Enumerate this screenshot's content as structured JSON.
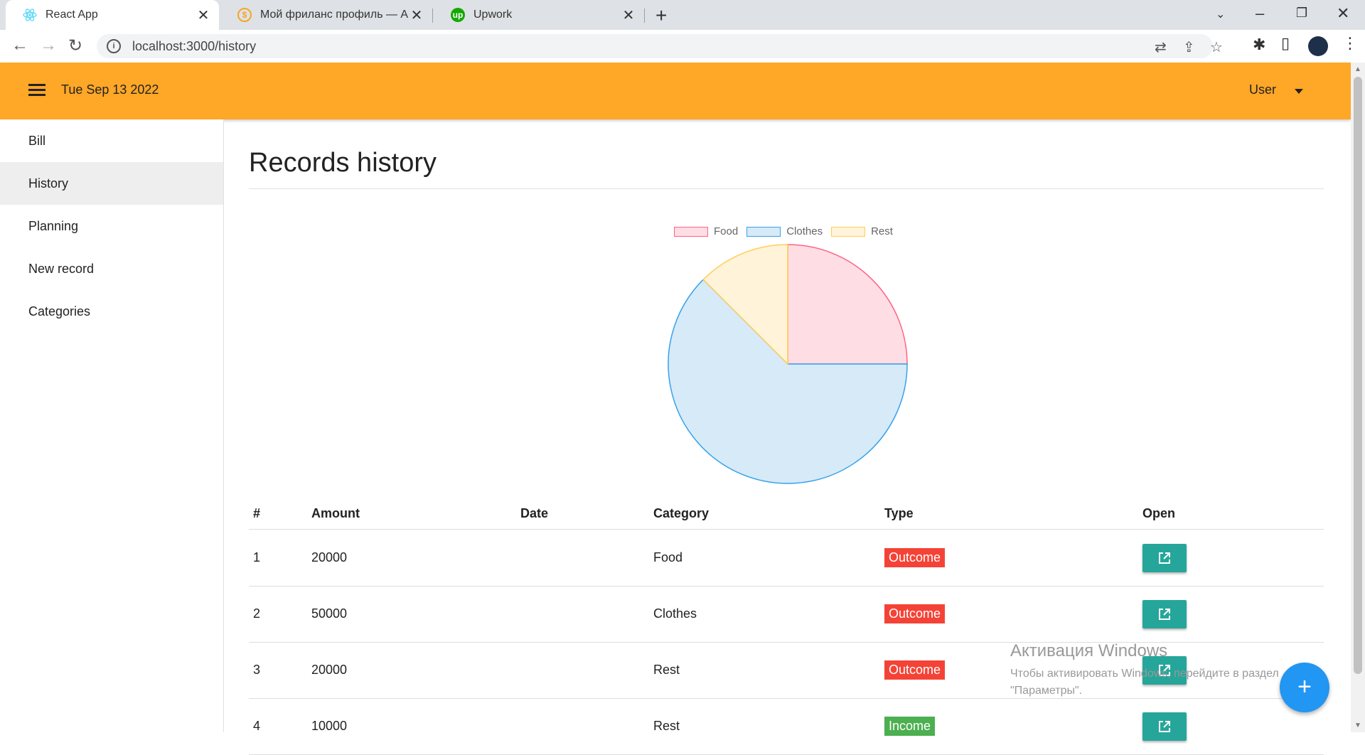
{
  "browser": {
    "tabs": [
      {
        "title": "React App",
        "icon": "react-icon"
      },
      {
        "title": "Мой фриланс профиль — Алди",
        "icon": "freelance-icon"
      },
      {
        "title": "Upwork",
        "icon": "upwork-icon"
      }
    ],
    "url": "localhost:3000/history"
  },
  "header": {
    "date": "Tue Sep 13 2022",
    "user_label": "User",
    "color": "#ffa726"
  },
  "sidebar": {
    "items": [
      {
        "label": "Bill",
        "active": false
      },
      {
        "label": "History",
        "active": true
      },
      {
        "label": "Planning",
        "active": false
      },
      {
        "label": "New record",
        "active": false
      },
      {
        "label": "Categories",
        "active": false
      }
    ]
  },
  "main": {
    "title": "Records history"
  },
  "chart_data": {
    "type": "pie",
    "labels": [
      "Food",
      "Clothes",
      "Rest"
    ],
    "values": [
      20000,
      50000,
      10000
    ],
    "colors": [
      "#ffdde4",
      "#d6eaf8",
      "#fff3d9"
    ],
    "border_colors": [
      "#ff6384",
      "#36a2eb",
      "#ffce56"
    ],
    "legend_position": "top"
  },
  "table": {
    "headers": [
      "#",
      "Amount",
      "Date",
      "Category",
      "Type",
      "Open"
    ],
    "rows": [
      {
        "num": "1",
        "amount": "20000",
        "date": "",
        "category": "Food",
        "type": "Outcome"
      },
      {
        "num": "2",
        "amount": "50000",
        "date": "",
        "category": "Clothes",
        "type": "Outcome"
      },
      {
        "num": "3",
        "amount": "20000",
        "date": "",
        "category": "Rest",
        "type": "Outcome"
      },
      {
        "num": "4",
        "amount": "10000",
        "date": "",
        "category": "Rest",
        "type": "Income"
      }
    ],
    "type_colors": {
      "Outcome": "#f44336",
      "Income": "#4caf50"
    }
  },
  "watermark": {
    "line1": "Активация Windows",
    "line2": "Чтобы активировать Windows, перейдите в раздел",
    "line3": "\"Параметры\"."
  },
  "fab_label": "+"
}
